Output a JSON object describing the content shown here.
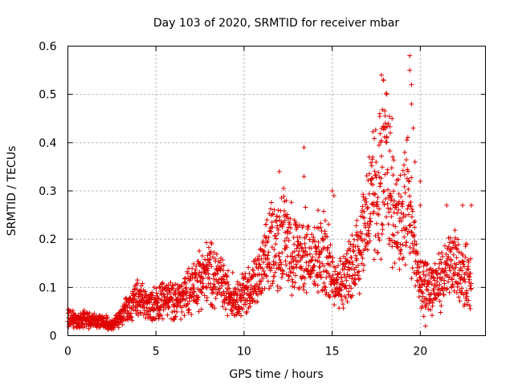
{
  "chart_data": {
    "type": "scatter",
    "title": "Day 103 of 2020, SRMTID for receiver mbar",
    "xlabel": "GPS time / hours",
    "ylabel": "SRMTID / TECUs",
    "xlim": [
      0,
      23.7
    ],
    "ylim": [
      0,
      0.6
    ],
    "xticks": [
      0,
      5,
      10,
      15,
      20
    ],
    "yticks": [
      0,
      0.1,
      0.2,
      0.3,
      0.4,
      0.5,
      0.6
    ],
    "grid": true,
    "marker": "+",
    "color": "#e00000",
    "series": [
      {
        "name": "mbar",
        "sample_interval_hours": 0.011,
        "profile": [
          [
            0.0,
            0.04
          ],
          [
            0.5,
            0.03
          ],
          [
            1.0,
            0.035
          ],
          [
            1.5,
            0.03
          ],
          [
            2.0,
            0.03
          ],
          [
            2.5,
            0.02
          ],
          [
            3.0,
            0.04
          ],
          [
            3.5,
            0.06
          ],
          [
            4.0,
            0.08
          ],
          [
            4.5,
            0.06
          ],
          [
            5.0,
            0.07
          ],
          [
            5.5,
            0.08
          ],
          [
            6.0,
            0.07
          ],
          [
            6.5,
            0.08
          ],
          [
            7.0,
            0.1
          ],
          [
            7.5,
            0.12
          ],
          [
            8.0,
            0.13
          ],
          [
            8.5,
            0.12
          ],
          [
            9.0,
            0.09
          ],
          [
            9.5,
            0.08
          ],
          [
            10.0,
            0.09
          ],
          [
            10.5,
            0.1
          ],
          [
            11.0,
            0.13
          ],
          [
            11.5,
            0.18
          ],
          [
            12.0,
            0.2
          ],
          [
            12.5,
            0.2
          ],
          [
            13.0,
            0.16
          ],
          [
            13.5,
            0.17
          ],
          [
            14.0,
            0.15
          ],
          [
            14.5,
            0.17
          ],
          [
            15.0,
            0.13
          ],
          [
            15.5,
            0.11
          ],
          [
            16.0,
            0.13
          ],
          [
            16.5,
            0.18
          ],
          [
            17.0,
            0.25
          ],
          [
            17.5,
            0.28
          ],
          [
            17.8,
            0.33
          ],
          [
            18.0,
            0.35
          ],
          [
            18.5,
            0.25
          ],
          [
            19.0,
            0.23
          ],
          [
            19.3,
            0.28
          ],
          [
            19.6,
            0.2
          ],
          [
            20.0,
            0.1
          ],
          [
            20.5,
            0.1
          ],
          [
            21.0,
            0.11
          ],
          [
            21.5,
            0.13
          ],
          [
            22.0,
            0.15
          ],
          [
            22.5,
            0.12
          ],
          [
            22.9,
            0.13
          ]
        ],
        "highlights": [
          [
            11.3,
            0.24
          ],
          [
            12.0,
            0.34
          ],
          [
            12.4,
            0.28
          ],
          [
            13.4,
            0.39
          ],
          [
            13.4,
            0.33
          ],
          [
            14.2,
            0.26
          ],
          [
            15.0,
            0.3
          ],
          [
            15.1,
            0.29
          ],
          [
            16.7,
            0.26
          ],
          [
            17.1,
            0.37
          ],
          [
            17.3,
            0.37
          ],
          [
            17.7,
            0.46
          ],
          [
            17.8,
            0.54
          ],
          [
            17.9,
            0.53
          ],
          [
            18.1,
            0.5
          ],
          [
            18.4,
            0.45
          ],
          [
            18.3,
            0.42
          ],
          [
            19.4,
            0.58
          ],
          [
            19.4,
            0.55
          ],
          [
            19.5,
            0.52
          ],
          [
            19.5,
            0.48
          ],
          [
            19.6,
            0.43
          ],
          [
            19.7,
            0.36
          ],
          [
            20.0,
            0.32
          ],
          [
            20.0,
            0.27
          ],
          [
            21.5,
            0.27
          ],
          [
            22.4,
            0.27
          ],
          [
            22.9,
            0.27
          ],
          [
            20.3,
            0.02
          ],
          [
            20.2,
            0.04
          ]
        ]
      }
    ]
  }
}
